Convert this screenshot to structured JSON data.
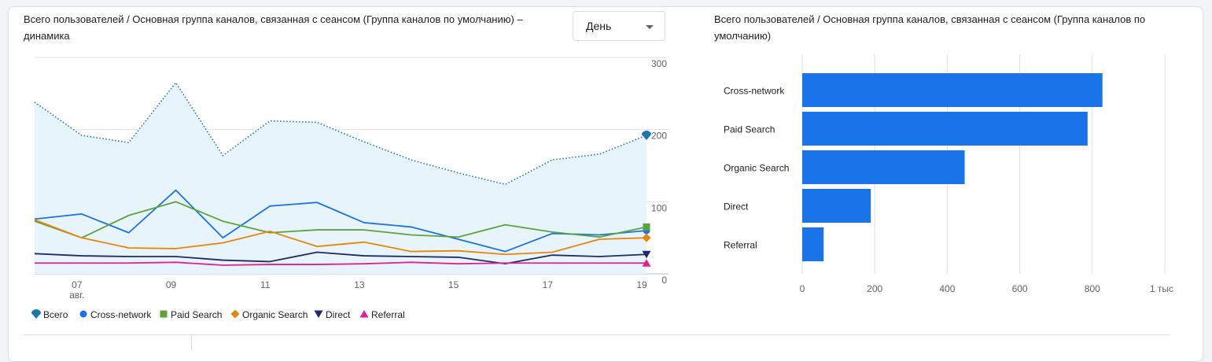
{
  "line_chart": {
    "title": "Всего пользователей / Основная группа каналов, связанная с сеансом (Группа каналов по умолчанию) – динамика",
    "interval_label": "День",
    "y_ticks": [
      "300",
      "200",
      "100",
      "0"
    ],
    "x_ticks": [
      "07",
      "09",
      "11",
      "13",
      "15",
      "17",
      "19"
    ],
    "x_sub": "авг."
  },
  "bar_chart": {
    "title": "Всего пользователей / Основная группа каналов, связанная с сеансом (Группа каналов по умолчанию)",
    "x_ticks": [
      "0",
      "200",
      "400",
      "600",
      "800",
      "1 тыс"
    ]
  },
  "legend": [
    "Всего",
    "Cross-network",
    "Paid Search",
    "Organic Search",
    "Direct",
    "Referral"
  ],
  "colors": {
    "total": "#1b78a8",
    "cross": "#1a73e8",
    "paid": "#5ea33a",
    "organic": "#e8860c",
    "direct": "#1f2a6b",
    "referral": "#e3218a",
    "bar": "#1a73e8",
    "area_fill": "#e8f4fb",
    "grid": "#e0e0e0"
  },
  "chart_data": [
    {
      "type": "line",
      "x": [
        "06",
        "07",
        "08",
        "09",
        "10",
        "11",
        "12",
        "13",
        "14",
        "15",
        "16",
        "17",
        "18",
        "19"
      ],
      "ylim": [
        0,
        300
      ],
      "series": [
        {
          "name": "Всего",
          "values": [
            238,
            192,
            182,
            265,
            164,
            212,
            210,
            183,
            158,
            140,
            124,
            158,
            166,
            192
          ]
        },
        {
          "name": "Cross-network",
          "values": [
            76,
            83,
            57,
            116,
            50,
            94,
            99,
            71,
            65,
            48,
            31,
            56,
            54,
            60
          ]
        },
        {
          "name": "Paid Search",
          "values": [
            73,
            50,
            81,
            100,
            73,
            57,
            61,
            61,
            54,
            51,
            68,
            58,
            51,
            65
          ]
        },
        {
          "name": "Organic Search",
          "values": [
            75,
            50,
            36,
            35,
            43,
            59,
            38,
            44,
            31,
            32,
            27,
            30,
            48,
            50
          ]
        },
        {
          "name": "Direct",
          "values": [
            28,
            25,
            24,
            24,
            19,
            17,
            30,
            25,
            24,
            23,
            14,
            26,
            24,
            27
          ]
        },
        {
          "name": "Referral",
          "values": [
            15,
            15,
            15,
            16,
            12,
            13,
            13,
            14,
            16,
            14,
            15,
            15,
            15,
            15
          ]
        }
      ]
    },
    {
      "type": "bar",
      "categories": [
        "Cross-network",
        "Paid Search",
        "Organic Search",
        "Direct",
        "Referral"
      ],
      "values": [
        828,
        787,
        448,
        189,
        59
      ],
      "xlim": [
        0,
        1000
      ]
    }
  ]
}
